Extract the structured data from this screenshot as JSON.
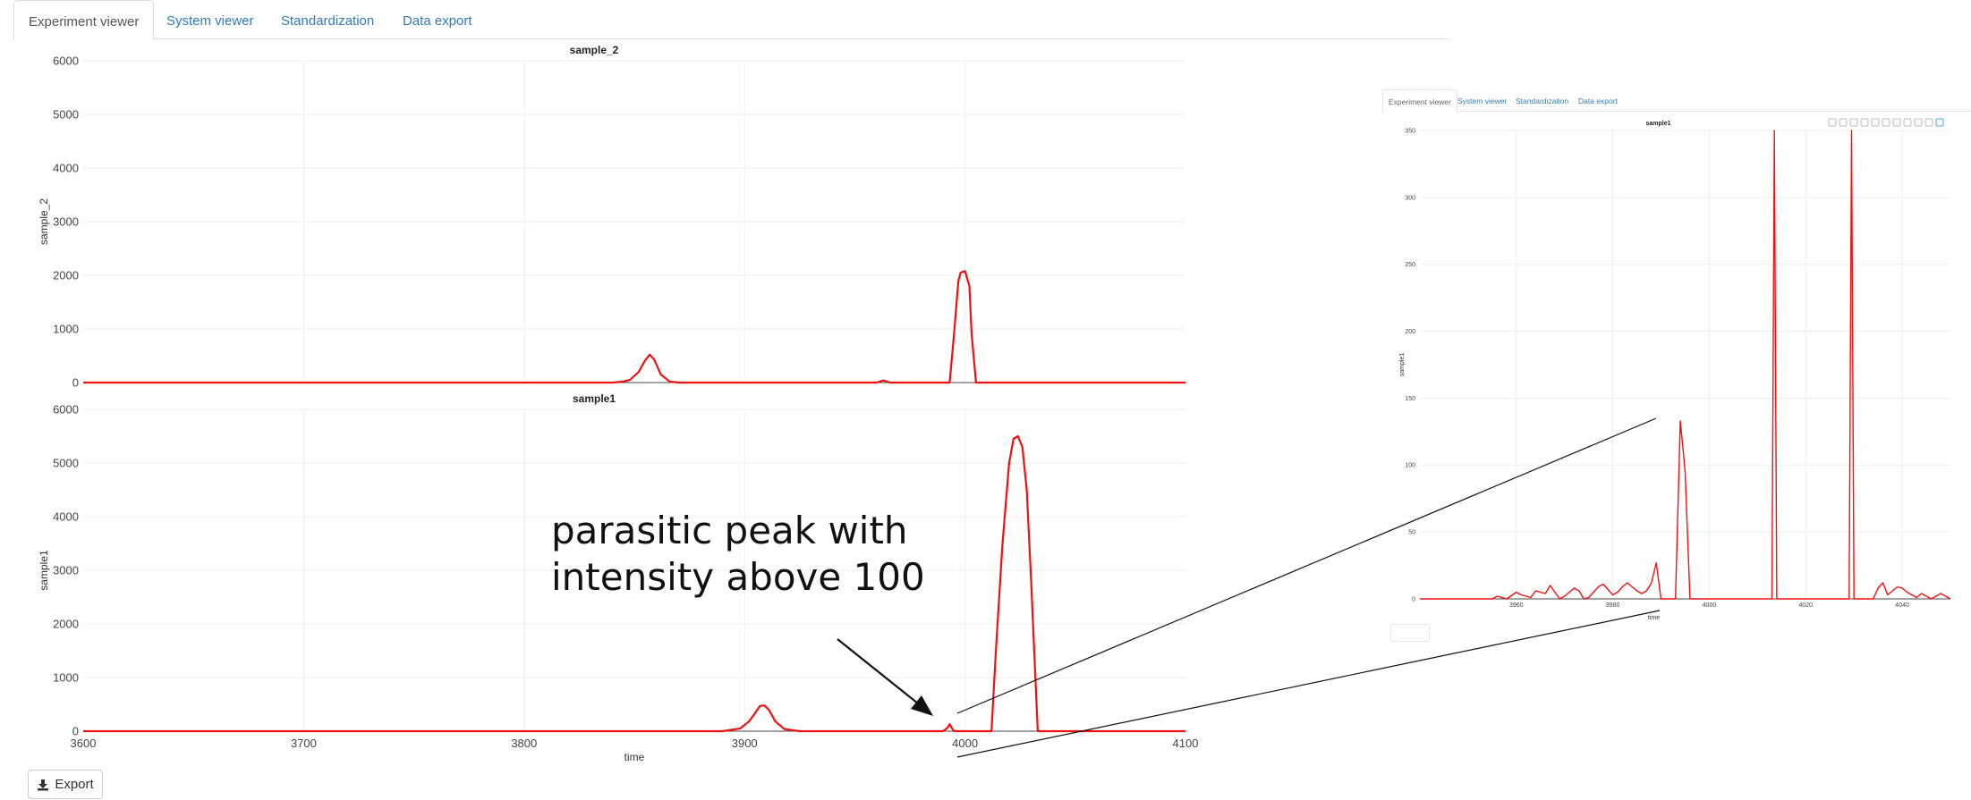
{
  "tabs": [
    {
      "label": "Experiment viewer",
      "active": true
    },
    {
      "label": "System viewer",
      "active": false
    },
    {
      "label": "Standardization",
      "active": false
    },
    {
      "label": "Data export",
      "active": false
    }
  ],
  "export_button": {
    "label": "Export",
    "icon": "download-icon"
  },
  "annotation": {
    "lines": [
      "parasitic peak with",
      "intensity above 100"
    ]
  },
  "colors": {
    "trace": "#ee1111",
    "link": "#337ab7",
    "grid": "#eeeeee",
    "toolbar_icon": "#bbbbbb",
    "toolbar_active": "#4aa3df"
  },
  "toolbar": {
    "icons": [
      "camera-icon",
      "zoom-icon",
      "pan-icon",
      "zoom-in-icon",
      "zoom-out-icon",
      "autoscale-icon",
      "reset-axes-icon",
      "spike-lines-icon",
      "hover-closest-icon",
      "hover-compare-icon",
      "plotly-logo-icon"
    ]
  },
  "chart_data": [
    {
      "type": "line",
      "title": "sample_2",
      "xlabel": "",
      "ylabel": "sample_2",
      "xlim": [
        3600,
        4100
      ],
      "ylim": [
        0,
        6000
      ],
      "y_ticks": [
        "0",
        "1000",
        "2000",
        "3000",
        "4000",
        "5000",
        "6000"
      ],
      "x_ticks": [],
      "grid": true,
      "series": [
        {
          "x": [
            3600,
            3840,
            3845,
            3848,
            3852,
            3855,
            3857,
            3859,
            3862,
            3866,
            3870,
            3960,
            3963,
            3966,
            3993,
            3995,
            3997,
            3998,
            4000,
            4002,
            4003,
            4005,
            4100
          ],
          "y": [
            0,
            0,
            20,
            50,
            200,
            420,
            520,
            430,
            150,
            20,
            0,
            0,
            40,
            0,
            0,
            900,
            1900,
            2050,
            2080,
            1800,
            900,
            0,
            0
          ]
        }
      ]
    },
    {
      "type": "line",
      "title": "sample1",
      "xlabel": "time",
      "ylabel": "sample1",
      "xlim": [
        3600,
        4100
      ],
      "ylim": [
        0,
        6000
      ],
      "y_ticks": [
        "0",
        "1000",
        "2000",
        "3000",
        "4000",
        "5000",
        "6000"
      ],
      "x_ticks": [
        "3600",
        "3700",
        "3800",
        "3900",
        "4000",
        "4100"
      ],
      "grid": true,
      "series": [
        {
          "x": [
            3600,
            3890,
            3898,
            3902,
            3905,
            3907,
            3909,
            3911,
            3914,
            3918,
            3925,
            3990,
            3992,
            3993,
            3994,
            3995,
            4012,
            4014,
            4017,
            4020,
            4022,
            4024,
            4026,
            4028,
            4030,
            4033,
            4100
          ],
          "y": [
            0,
            0,
            50,
            180,
            350,
            470,
            480,
            400,
            180,
            40,
            0,
            0,
            60,
            130,
            60,
            0,
            0,
            1500,
            3500,
            5000,
            5450,
            5500,
            5300,
            4500,
            2800,
            0,
            0
          ]
        }
      ]
    },
    {
      "type": "line",
      "title": "sample1",
      "xlabel": "time",
      "ylabel": "sample1",
      "xlim": [
        3940,
        4050
      ],
      "ylim": [
        0,
        350
      ],
      "y_ticks": [
        "0",
        "50",
        "100",
        "150",
        "200",
        "250",
        "300",
        "350"
      ],
      "x_ticks": [
        "3960",
        "3980",
        "4000",
        "4020",
        "4040"
      ],
      "grid": true,
      "series": [
        {
          "x": [
            3940,
            3955,
            3956,
            3958,
            3960,
            3961,
            3963,
            3964,
            3966,
            3967,
            3968,
            3969,
            3970,
            3972,
            3973,
            3974,
            3975,
            3976,
            3977,
            3978,
            3979,
            3980,
            3981,
            3982,
            3983,
            3984,
            3985,
            3986,
            3987,
            3988,
            3989,
            3990,
            3991,
            3992,
            3993,
            3994,
            3995,
            3996,
            4013,
            4013.5,
            4014,
            4029,
            4029.5,
            4030,
            4034,
            4035,
            4036,
            4037,
            4038,
            4039,
            4040,
            4041,
            4042,
            4043,
            4044,
            4045,
            4046,
            4048,
            4049,
            4050
          ],
          "y": [
            0,
            0,
            2,
            0,
            5,
            3,
            1,
            6,
            4,
            10,
            5,
            0,
            2,
            8,
            6,
            0,
            1,
            5,
            9,
            11,
            7,
            3,
            5,
            9,
            12,
            9,
            6,
            4,
            6,
            12,
            27,
            0,
            0,
            0,
            0,
            133,
            95,
            0,
            0,
            350,
            0,
            0,
            350,
            0,
            0,
            8,
            12,
            3,
            6,
            9,
            8,
            5,
            3,
            1,
            4,
            2,
            0,
            4,
            2,
            0
          ]
        }
      ]
    }
  ]
}
